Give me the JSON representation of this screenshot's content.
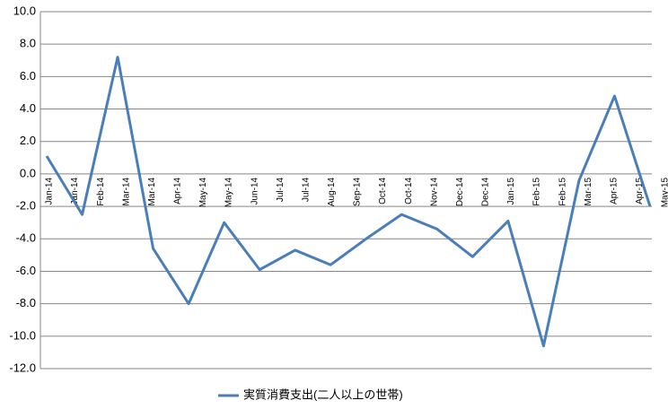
{
  "chart_data": {
    "type": "line",
    "x": [
      "2014-01",
      "2014-02",
      "2014-03",
      "2014-04",
      "2014-05",
      "2014-06",
      "2014-07",
      "2014-08",
      "2014-09",
      "2014-10",
      "2014-11",
      "2014-12",
      "2015-01",
      "2015-02",
      "2015-03",
      "2015-04",
      "2015-05",
      "2015-06"
    ],
    "series": [
      {
        "name": "実質消費支出(二人以上の世帯)",
        "color": "#4a7ebb",
        "values": [
          1.1,
          -2.5,
          7.2,
          -4.6,
          -8.0,
          -3.0,
          -5.9,
          -4.7,
          -5.6,
          -4.0,
          -2.5,
          -3.4,
          -5.1,
          -2.9,
          -10.6,
          -0.4,
          4.8,
          -2.0
        ]
      }
    ],
    "xticks": [
      "Jan-14",
      "Jan-14",
      "Feb-14",
      "Mar-14",
      "Mar-14",
      "Apr-14",
      "May-14",
      "May-14",
      "Jun-14",
      "Jul-14",
      "Jul-14",
      "Aug-14",
      "Sep-14",
      "Oct-14",
      "Oct-14",
      "Nov-14",
      "Dec-14",
      "Dec-14",
      "Jan-15",
      "Feb-15",
      "Feb-15",
      "Mar-15",
      "Apr-15",
      "Apr-15",
      "May-15"
    ],
    "ylim": [
      -12,
      10
    ],
    "yticks": [
      {
        "value": -12,
        "label": "-12.0"
      },
      {
        "value": -10,
        "label": "-10.0"
      },
      {
        "value": -8,
        "label": "-8.0"
      },
      {
        "value": -6,
        "label": "-6.0"
      },
      {
        "value": -4,
        "label": "-4.0"
      },
      {
        "value": -2,
        "label": "-2.0"
      },
      {
        "value": 0,
        "label": "0.0"
      },
      {
        "value": 2,
        "label": "2.0"
      },
      {
        "value": 4,
        "label": "4.0"
      },
      {
        "value": 6,
        "label": "6.0"
      },
      {
        "value": 8,
        "label": "8.0"
      },
      {
        "value": 10,
        "label": "10.0"
      }
    ],
    "grid": true,
    "legend": "bottom"
  }
}
